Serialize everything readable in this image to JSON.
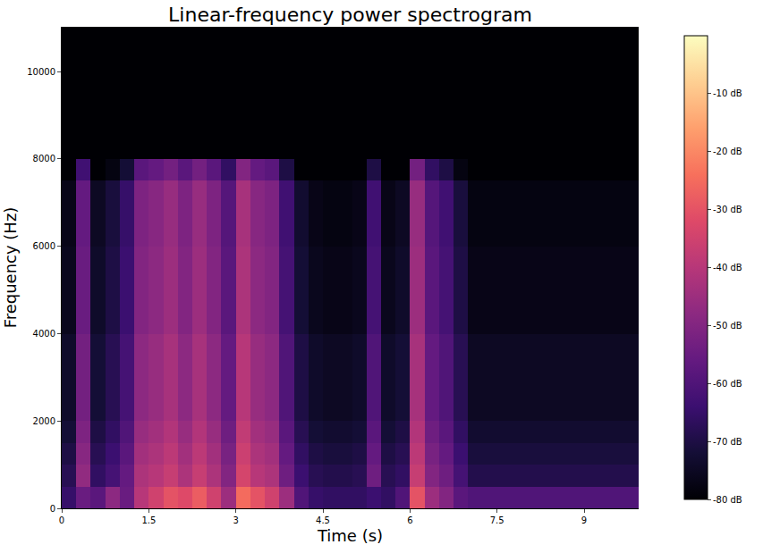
{
  "chart_data": {
    "type": "heatmap",
    "title": "Linear-frequency power spectrogram",
    "xlabel": "Time (s)",
    "ylabel": "Frequency (Hz)",
    "xlim": [
      0,
      9.94
    ],
    "xticks": [
      0,
      1.5,
      3,
      4.5,
      6,
      7.5,
      9
    ],
    "ylim": [
      0,
      11025
    ],
    "yticks": [
      0,
      2000,
      4000,
      6000,
      8000,
      10000
    ],
    "x": [
      0.125,
      0.375,
      0.625,
      0.875,
      1.125,
      1.375,
      1.625,
      1.875,
      2.125,
      2.375,
      2.625,
      2.875,
      3.125,
      3.375,
      3.625,
      3.875,
      4.125,
      4.375,
      4.625,
      4.875,
      5.125,
      5.375,
      5.625,
      5.875,
      6.125,
      6.375,
      6.625,
      6.875,
      7.125,
      7.375,
      7.625,
      7.875,
      8.125,
      8.375,
      8.625,
      8.875,
      9.125,
      9.375,
      9.625,
      9.875
    ],
    "y": [
      250,
      750,
      1250,
      1750,
      2250,
      2750,
      3250,
      3750,
      4250,
      4750,
      5250,
      5750,
      6250,
      6750,
      7250,
      7750,
      8250,
      8750,
      9250,
      9750,
      10250,
      10750
    ],
    "cells": [
      [
        -65,
        -55,
        -58,
        -48,
        -55,
        -40,
        -35,
        -30,
        -32,
        -28,
        -35,
        -45,
        -25,
        -30,
        -35,
        -45,
        -60,
        -65,
        -66,
        -66,
        -66,
        -64,
        -66,
        -60,
        -30,
        -45,
        -50,
        -58,
        -60,
        -60,
        -60,
        -60,
        -60,
        -60,
        -60,
        -60,
        -60,
        -60,
        -60,
        -60
      ],
      [
        -68,
        -47,
        -66,
        -62,
        -56,
        -42,
        -40,
        -37,
        -42,
        -37,
        -42,
        -50,
        -34,
        -40,
        -42,
        -54,
        -64,
        -68,
        -69,
        -69,
        -68,
        -54,
        -68,
        -66,
        -37,
        -50,
        -54,
        -62,
        -69,
        -69,
        -69,
        -69,
        -69,
        -69,
        -69,
        -69,
        -69,
        -69,
        -69,
        -69
      ],
      [
        -70,
        -49,
        -68,
        -64,
        -58,
        -44,
        -42,
        -39,
        -44,
        -39,
        -44,
        -52,
        -36,
        -42,
        -44,
        -56,
        -66,
        -70,
        -71,
        -71,
        -70,
        -56,
        -70,
        -68,
        -39,
        -52,
        -56,
        -64,
        -71,
        -71,
        -71,
        -71,
        -71,
        -71,
        -71,
        -71,
        -71,
        -71,
        -71,
        -71
      ],
      [
        -72,
        -51,
        -70,
        -66,
        -60,
        -46,
        -44,
        -41,
        -46,
        -41,
        -46,
        -54,
        -38,
        -44,
        -46,
        -58,
        -68,
        -72,
        -73,
        -73,
        -72,
        -58,
        -72,
        -70,
        -41,
        -54,
        -58,
        -66,
        -73,
        -73,
        -73,
        -73,
        -73,
        -73,
        -73,
        -73,
        -73,
        -73,
        -73,
        -73
      ],
      [
        -74,
        -53,
        -72,
        -68,
        -62,
        -48,
        -46,
        -43,
        -48,
        -43,
        -48,
        -56,
        -40,
        -46,
        -48,
        -60,
        -70,
        -74,
        -75,
        -75,
        -74,
        -60,
        -74,
        -72,
        -43,
        -56,
        -60,
        -68,
        -75,
        -75,
        -75,
        -75,
        -75,
        -75,
        -75,
        -75,
        -75,
        -75,
        -75,
        -75
      ],
      [
        -74,
        -53,
        -72,
        -68,
        -62,
        -48,
        -46,
        -43,
        -48,
        -43,
        -48,
        -56,
        -40,
        -46,
        -48,
        -60,
        -70,
        -74,
        -75,
        -75,
        -74,
        -60,
        -74,
        -72,
        -43,
        -56,
        -60,
        -68,
        -75,
        -75,
        -75,
        -75,
        -75,
        -75,
        -75,
        -75,
        -75,
        -75,
        -75,
        -75
      ],
      [
        -74,
        -53,
        -72,
        -68,
        -62,
        -48,
        -46,
        -43,
        -48,
        -43,
        -48,
        -56,
        -40,
        -46,
        -48,
        -60,
        -70,
        -74,
        -75,
        -75,
        -74,
        -60,
        -74,
        -72,
        -43,
        -56,
        -60,
        -68,
        -75,
        -75,
        -75,
        -75,
        -75,
        -75,
        -75,
        -75,
        -75,
        -75,
        -75,
        -75
      ],
      [
        -74,
        -53,
        -72,
        -68,
        -62,
        -48,
        -46,
        -43,
        -48,
        -43,
        -48,
        -56,
        -40,
        -46,
        -48,
        -60,
        -70,
        -74,
        -75,
        -75,
        -74,
        -60,
        -74,
        -72,
        -43,
        -56,
        -60,
        -68,
        -75,
        -75,
        -75,
        -75,
        -75,
        -75,
        -75,
        -75,
        -75,
        -75,
        -75,
        -75
      ],
      [
        -76,
        -55,
        -74,
        -70,
        -64,
        -50,
        -48,
        -45,
        -50,
        -45,
        -50,
        -58,
        -42,
        -48,
        -50,
        -62,
        -72,
        -76,
        -77,
        -77,
        -76,
        -62,
        -76,
        -74,
        -45,
        -58,
        -62,
        -70,
        -77,
        -77,
        -77,
        -77,
        -77,
        -77,
        -77,
        -77,
        -77,
        -77,
        -77,
        -77
      ],
      [
        -76,
        -55,
        -74,
        -70,
        -64,
        -50,
        -48,
        -45,
        -50,
        -45,
        -50,
        -58,
        -42,
        -48,
        -50,
        -62,
        -72,
        -76,
        -77,
        -77,
        -76,
        -62,
        -76,
        -74,
        -45,
        -58,
        -62,
        -70,
        -77,
        -77,
        -77,
        -77,
        -77,
        -77,
        -77,
        -77,
        -77,
        -77,
        -77,
        -77
      ],
      [
        -76,
        -55,
        -74,
        -70,
        -64,
        -50,
        -48,
        -45,
        -50,
        -45,
        -50,
        -58,
        -42,
        -48,
        -50,
        -62,
        -72,
        -76,
        -77,
        -77,
        -76,
        -62,
        -76,
        -74,
        -45,
        -58,
        -62,
        -70,
        -77,
        -77,
        -77,
        -77,
        -77,
        -77,
        -77,
        -77,
        -77,
        -77,
        -77,
        -77
      ],
      [
        -76,
        -55,
        -74,
        -70,
        -64,
        -50,
        -48,
        -45,
        -50,
        -45,
        -50,
        -58,
        -42,
        -48,
        -50,
        -62,
        -72,
        -76,
        -77,
        -77,
        -76,
        -62,
        -76,
        -74,
        -45,
        -58,
        -62,
        -70,
        -77,
        -77,
        -77,
        -77,
        -77,
        -77,
        -77,
        -77,
        -77,
        -77,
        -77,
        -77
      ],
      [
        -77,
        -56,
        -75,
        -71,
        -65,
        -51,
        -49,
        -46,
        -51,
        -46,
        -51,
        -59,
        -43,
        -49,
        -51,
        -63,
        -73,
        -77,
        -78,
        -78,
        -77,
        -63,
        -77,
        -75,
        -46,
        -59,
        -63,
        -71,
        -78,
        -78,
        -78,
        -78,
        -78,
        -78,
        -78,
        -78,
        -78,
        -78,
        -78,
        -78
      ],
      [
        -77,
        -56,
        -75,
        -71,
        -65,
        -51,
        -49,
        -46,
        -51,
        -46,
        -51,
        -59,
        -43,
        -49,
        -51,
        -63,
        -73,
        -77,
        -78,
        -78,
        -77,
        -63,
        -77,
        -75,
        -46,
        -59,
        -63,
        -71,
        -78,
        -78,
        -78,
        -78,
        -78,
        -78,
        -78,
        -78,
        -78,
        -78,
        -78,
        -78
      ],
      [
        -77,
        -56,
        -75,
        -71,
        -65,
        -51,
        -49,
        -46,
        -51,
        -46,
        -51,
        -59,
        -43,
        -49,
        -51,
        -63,
        -73,
        -77,
        -78,
        -78,
        -77,
        -63,
        -77,
        -75,
        -46,
        -59,
        -63,
        -71,
        -78,
        -78,
        -78,
        -78,
        -78,
        -78,
        -78,
        -78,
        -78,
        -78,
        -78,
        -78
      ],
      [
        -80,
        -63,
        -80,
        -78,
        -72,
        -58,
        -56,
        -53,
        -58,
        -53,
        -58,
        -66,
        -50,
        -56,
        -58,
        -70,
        -80,
        -80,
        -80,
        -80,
        -80,
        -70,
        -80,
        -80,
        -53,
        -66,
        -70,
        -78,
        -80,
        -80,
        -80,
        -80,
        -80,
        -80,
        -80,
        -80,
        -80,
        -80,
        -80,
        -80
      ],
      [
        -80,
        -80,
        -80,
        -80,
        -80,
        -80,
        -80,
        -80,
        -80,
        -80,
        -80,
        -80,
        -80,
        -80,
        -80,
        -80,
        -80,
        -80,
        -80,
        -80,
        -80,
        -80,
        -80,
        -80,
        -80,
        -80,
        -80,
        -80,
        -80,
        -80,
        -80,
        -80,
        -80,
        -80,
        -80,
        -80,
        -80,
        -80,
        -80,
        -80
      ],
      [
        -80,
        -80,
        -80,
        -80,
        -80,
        -80,
        -80,
        -80,
        -80,
        -80,
        -80,
        -80,
        -80,
        -80,
        -80,
        -80,
        -80,
        -80,
        -80,
        -80,
        -80,
        -80,
        -80,
        -80,
        -80,
        -80,
        -80,
        -80,
        -80,
        -80,
        -80,
        -80,
        -80,
        -80,
        -80,
        -80,
        -80,
        -80,
        -80,
        -80
      ],
      [
        -80,
        -80,
        -80,
        -80,
        -80,
        -80,
        -80,
        -80,
        -80,
        -80,
        -80,
        -80,
        -80,
        -80,
        -80,
        -80,
        -80,
        -80,
        -80,
        -80,
        -80,
        -80,
        -80,
        -80,
        -80,
        -80,
        -80,
        -80,
        -80,
        -80,
        -80,
        -80,
        -80,
        -80,
        -80,
        -80,
        -80,
        -80,
        -80,
        -80
      ],
      [
        -80,
        -80,
        -80,
        -80,
        -80,
        -80,
        -80,
        -80,
        -80,
        -80,
        -80,
        -80,
        -80,
        -80,
        -80,
        -80,
        -80,
        -80,
        -80,
        -80,
        -80,
        -80,
        -80,
        -80,
        -80,
        -80,
        -80,
        -80,
        -80,
        -80,
        -80,
        -80,
        -80,
        -80,
        -80,
        -80,
        -80,
        -80,
        -80,
        -80
      ],
      [
        -80,
        -80,
        -80,
        -80,
        -80,
        -80,
        -80,
        -80,
        -80,
        -80,
        -80,
        -80,
        -80,
        -80,
        -80,
        -80,
        -80,
        -80,
        -80,
        -80,
        -80,
        -80,
        -80,
        -80,
        -80,
        -80,
        -80,
        -80,
        -80,
        -80,
        -80,
        -80,
        -80,
        -80,
        -80,
        -80,
        -80,
        -80,
        -80,
        -80
      ],
      [
        -80,
        -80,
        -80,
        -80,
        -80,
        -80,
        -80,
        -80,
        -80,
        -80,
        -80,
        -80,
        -80,
        -80,
        -80,
        -80,
        -80,
        -80,
        -80,
        -80,
        -80,
        -80,
        -80,
        -80,
        -80,
        -80,
        -80,
        -80,
        -80,
        -80,
        -80,
        -80,
        -80,
        -80,
        -80,
        -80,
        -80,
        -80,
        -80,
        -80
      ]
    ],
    "colorbar": {
      "range": [
        -80,
        0
      ],
      "ticks": [
        {
          "value": -10,
          "label": "-10 dB"
        },
        {
          "value": -20,
          "label": "-20 dB"
        },
        {
          "value": -30,
          "label": "-30 dB"
        },
        {
          "value": -40,
          "label": "-40 dB"
        },
        {
          "value": -50,
          "label": "-50 dB"
        },
        {
          "value": -60,
          "label": "-60 dB"
        },
        {
          "value": -70,
          "label": "-70 dB"
        },
        {
          "value": -80,
          "label": "-80 dB"
        }
      ]
    }
  }
}
